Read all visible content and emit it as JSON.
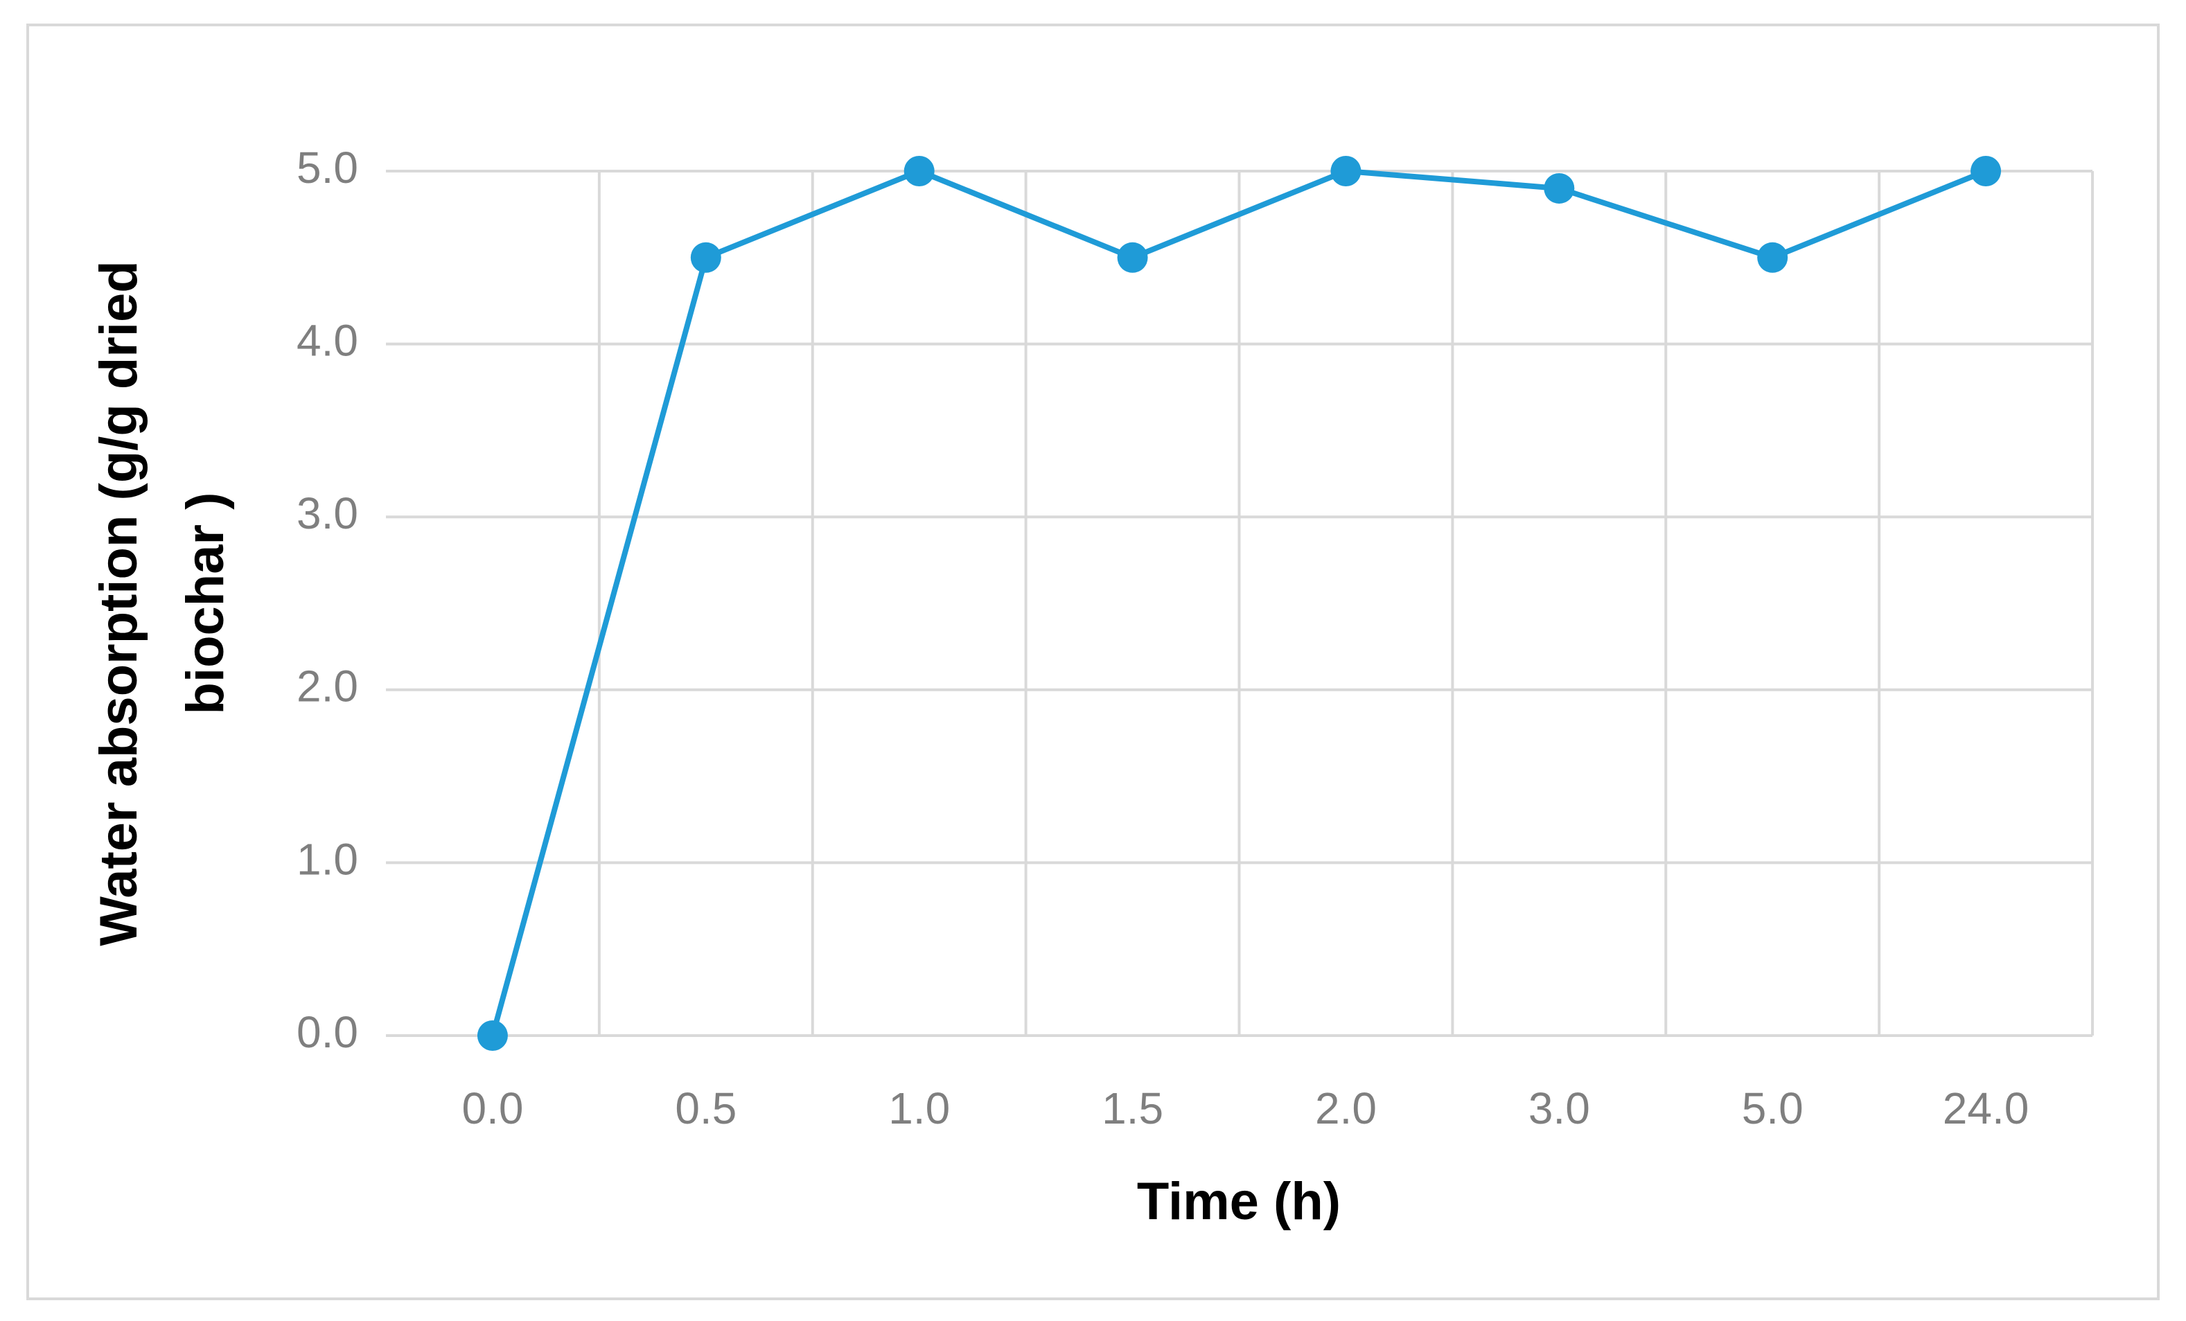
{
  "chart_data": {
    "type": "line",
    "x_label": "Time (h)",
    "y_label": [
      "Water absorption (g/g dried",
      "biochar )"
    ],
    "categories": [
      "0.0",
      "0.5",
      "1.0",
      "1.5",
      "2.0",
      "3.0",
      "5.0",
      "24.0"
    ],
    "series": [
      {
        "color": "#1f9bd7",
        "values": [
          0,
          4.5,
          5.0,
          4.5,
          5.0,
          4.9,
          4.5,
          5.0
        ]
      }
    ],
    "ylim": [
      0,
      5
    ],
    "yticks": [
      {
        "value": 0,
        "label": "0.0"
      },
      {
        "value": 1,
        "label": "1.0"
      },
      {
        "value": 2,
        "label": "2.0"
      },
      {
        "value": 3,
        "label": "3.0"
      },
      {
        "value": 4,
        "label": "4.0"
      },
      {
        "value": 5,
        "label": "5.0"
      }
    ],
    "grid": true
  }
}
